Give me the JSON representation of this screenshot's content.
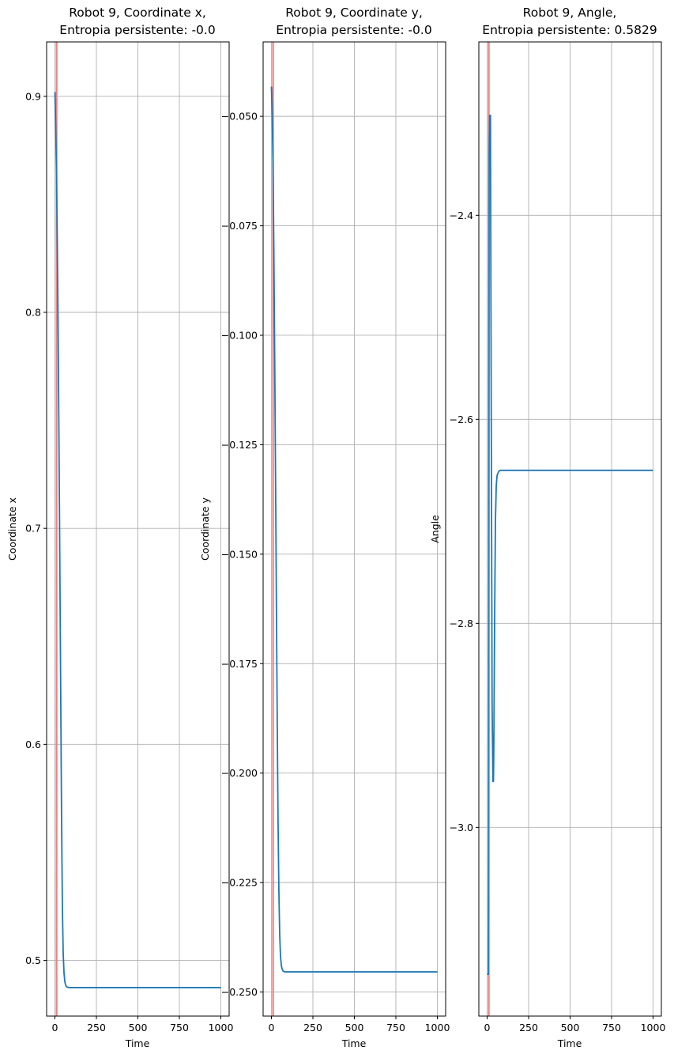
{
  "chart_data": [
    {
      "type": "line",
      "title_line1": "Robot 9, Coordinate x,",
      "title_line2": "Entropia persistente: -0.0",
      "xlabel": "Time",
      "ylabel": "Coordinate x",
      "xlim": [
        -50,
        1050
      ],
      "ylim": [
        0.4742,
        0.9252
      ],
      "xticks": [
        0,
        250,
        500,
        750,
        1000
      ],
      "xtick_labels": [
        "0",
        "250",
        "500",
        "750",
        "1000"
      ],
      "yticks": [
        0.5,
        0.6,
        0.7,
        0.8,
        0.9
      ],
      "ytick_labels": [
        "0.5",
        "0.6",
        "0.7",
        "0.8",
        "0.9"
      ],
      "grid": true,
      "vline_x": 10,
      "line_color": "#1f77b4",
      "vline_color": "#f08080",
      "series": [
        {
          "x": [
            0,
            5,
            10,
            15,
            20,
            25,
            30,
            35,
            40,
            45,
            50,
            55,
            60,
            65,
            70,
            80,
            90,
            100,
            150,
            200,
            300,
            500,
            750,
            1000
          ],
          "y": [
            0.902,
            0.885,
            0.862,
            0.828,
            0.785,
            0.735,
            0.68,
            0.623,
            0.567,
            0.525,
            0.503,
            0.494,
            0.49,
            0.4885,
            0.4878,
            0.4875,
            0.4874,
            0.4874,
            0.4874,
            0.4874,
            0.4874,
            0.4874,
            0.4874,
            0.4874
          ]
        }
      ]
    },
    {
      "type": "line",
      "title_line1": "Robot 9, Coordinate y,",
      "title_line2": "Entropia persistente: -0.0",
      "xlabel": "Time",
      "ylabel": "Coordinate y",
      "xlim": [
        -50,
        1050
      ],
      "ylim": [
        -0.2555,
        -0.033
      ],
      "xticks": [
        0,
        250,
        500,
        750,
        1000
      ],
      "xtick_labels": [
        "0",
        "250",
        "500",
        "750",
        "1000"
      ],
      "yticks": [
        -0.05,
        -0.075,
        -0.1,
        -0.125,
        -0.15,
        -0.175,
        -0.2,
        -0.225,
        -0.25
      ],
      "ytick_labels": [
        "−0.050",
        "−0.075",
        "−0.100",
        "−0.125",
        "−0.150",
        "−0.175",
        "−0.200",
        "−0.225",
        "−0.250"
      ],
      "grid": true,
      "vline_x": 10,
      "line_color": "#1f77b4",
      "vline_color": "#f08080",
      "series": [
        {
          "x": [
            0,
            5,
            10,
            15,
            20,
            25,
            30,
            35,
            40,
            45,
            50,
            55,
            60,
            65,
            70,
            80,
            90,
            100,
            150,
            200,
            300,
            500,
            750,
            1000
          ],
          "y": [
            -0.0432,
            -0.05,
            -0.062,
            -0.082,
            -0.106,
            -0.133,
            -0.161,
            -0.188,
            -0.211,
            -0.227,
            -0.237,
            -0.242,
            -0.244,
            -0.2448,
            -0.2452,
            -0.2454,
            -0.2454,
            -0.2454,
            -0.2454,
            -0.2454,
            -0.2454,
            -0.2454,
            -0.2454,
            -0.2454
          ]
        }
      ]
    },
    {
      "type": "line",
      "title_line1": "Robot 9, Angle,",
      "title_line2": "Entropia persistente: 0.5829",
      "xlabel": "Time",
      "ylabel": "Angle",
      "xlim": [
        -50,
        1050
      ],
      "ylim": [
        -3.185,
        -2.23
      ],
      "xticks": [
        0,
        250,
        500,
        750,
        1000
      ],
      "xtick_labels": [
        "0",
        "250",
        "500",
        "750",
        "1000"
      ],
      "yticks": [
        -2.4,
        -2.6,
        -2.8,
        -3.0
      ],
      "ytick_labels": [
        "−2.4",
        "−2.6",
        "−2.8",
        "−3.0"
      ],
      "grid": true,
      "vline_x": 10,
      "line_color": "#1f77b4",
      "vline_color": "#f08080",
      "series": [
        {
          "x": [
            0,
            5,
            8,
            10,
            12,
            15,
            20,
            25,
            30,
            35,
            38,
            40,
            45,
            50,
            55,
            60,
            70,
            80,
            90,
            100,
            150,
            200,
            300,
            500,
            750,
            1000
          ],
          "y": [
            -3.144,
            -3.144,
            -3.144,
            -2.785,
            -2.34,
            -2.302,
            -2.302,
            -2.6,
            -2.88,
            -2.955,
            -2.955,
            -2.93,
            -2.8,
            -2.7,
            -2.665,
            -2.655,
            -2.651,
            -2.65,
            -2.65,
            -2.65,
            -2.65,
            -2.65,
            -2.65,
            -2.65,
            -2.65,
            -2.65
          ]
        }
      ]
    }
  ]
}
